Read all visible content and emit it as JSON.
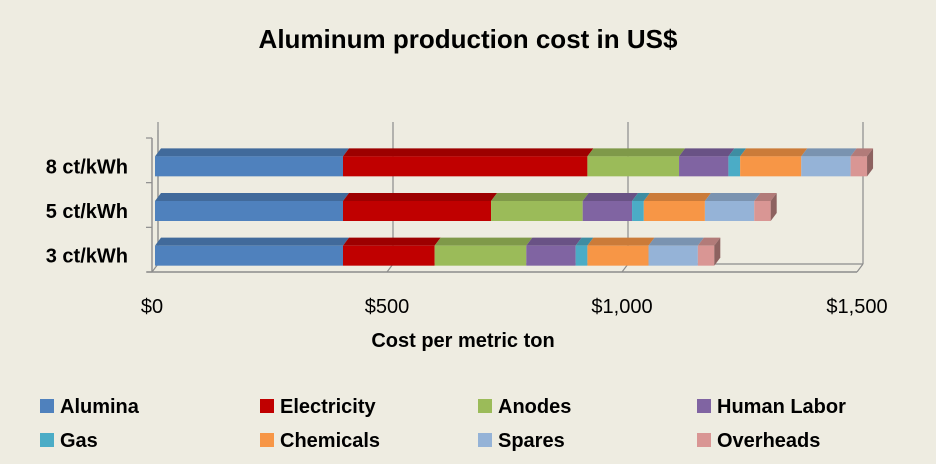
{
  "chart_data": {
    "type": "bar",
    "orientation": "horizontal",
    "stacked": true,
    "three_d": true,
    "title": "Aluminum production cost in US$",
    "xlabel": "Cost per  metric ton",
    "ylabel": "",
    "xlim": [
      0,
      1500
    ],
    "x_ticks": [
      0,
      500,
      1000,
      1500
    ],
    "x_tick_labels": [
      "$0",
      "$500",
      "$1,000",
      "$1,500"
    ],
    "grid": true,
    "legend_position": "bottom",
    "categories": [
      "8 ct/kWh",
      "5 ct/kWh",
      "3 ct/kWh"
    ],
    "series": [
      {
        "name": "Alumina",
        "color": "#4F81BD",
        "values": [
          400,
          400,
          400
        ]
      },
      {
        "name": "Electricity",
        "color": "#C00000",
        "values": [
          520,
          315,
          195
        ]
      },
      {
        "name": "Anodes",
        "color": "#9BBB59",
        "values": [
          195,
          195,
          195
        ]
      },
      {
        "name": "Human Labor",
        "color": "#8064A2",
        "values": [
          105,
          105,
          105
        ]
      },
      {
        "name": "Gas",
        "color": "#4BACC6",
        "values": [
          25,
          25,
          25
        ]
      },
      {
        "name": "Chemicals",
        "color": "#F79646",
        "values": [
          130,
          130,
          130
        ]
      },
      {
        "name": "Spares",
        "color": "#95B3D7",
        "values": [
          105,
          105,
          105
        ]
      },
      {
        "name": "Overheads",
        "color": "#D99694",
        "values": [
          35,
          35,
          35
        ]
      }
    ]
  }
}
